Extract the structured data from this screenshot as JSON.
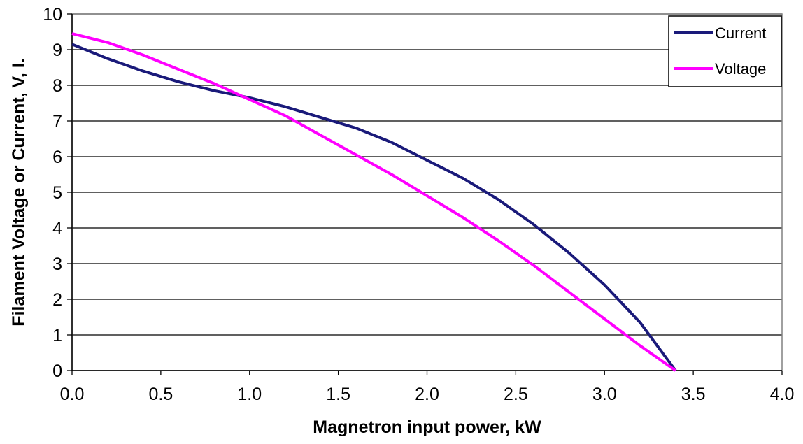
{
  "chart_data": {
    "type": "line",
    "xlabel": "Magnetron input power, kW",
    "ylabel": "Filament Voltage or Current, V, I.",
    "xlim": [
      0,
      4
    ],
    "ylim": [
      0,
      10
    ],
    "x_ticks": [
      "0.0",
      "0.5",
      "1.0",
      "1.5",
      "2.0",
      "2.5",
      "3.0",
      "3.5",
      "4.0"
    ],
    "y_ticks": [
      "0",
      "1",
      "2",
      "3",
      "4",
      "5",
      "6",
      "7",
      "8",
      "9",
      "10"
    ],
    "grid": "horizontal",
    "legend_position": "top-right",
    "series": [
      {
        "name": "Current",
        "color": "#1a1a7a",
        "x": [
          0.0,
          0.2,
          0.4,
          0.6,
          0.8,
          1.0,
          1.2,
          1.4,
          1.6,
          1.8,
          2.0,
          2.2,
          2.4,
          2.6,
          2.8,
          3.0,
          3.2,
          3.4
        ],
        "y": [
          9.15,
          8.75,
          8.4,
          8.1,
          7.85,
          7.65,
          7.4,
          7.1,
          6.8,
          6.4,
          5.9,
          5.4,
          4.8,
          4.1,
          3.3,
          2.4,
          1.35,
          0.0
        ]
      },
      {
        "name": "Voltage",
        "color": "#ff00ff",
        "x": [
          0.0,
          0.2,
          0.4,
          0.6,
          0.8,
          1.0,
          1.2,
          1.4,
          1.6,
          1.8,
          2.0,
          2.2,
          2.4,
          2.6,
          2.8,
          3.0,
          3.2,
          3.4
        ],
        "y": [
          9.45,
          9.2,
          8.85,
          8.45,
          8.05,
          7.6,
          7.15,
          6.6,
          6.05,
          5.5,
          4.9,
          4.3,
          3.65,
          2.95,
          2.2,
          1.45,
          0.7,
          0.0
        ]
      }
    ]
  }
}
